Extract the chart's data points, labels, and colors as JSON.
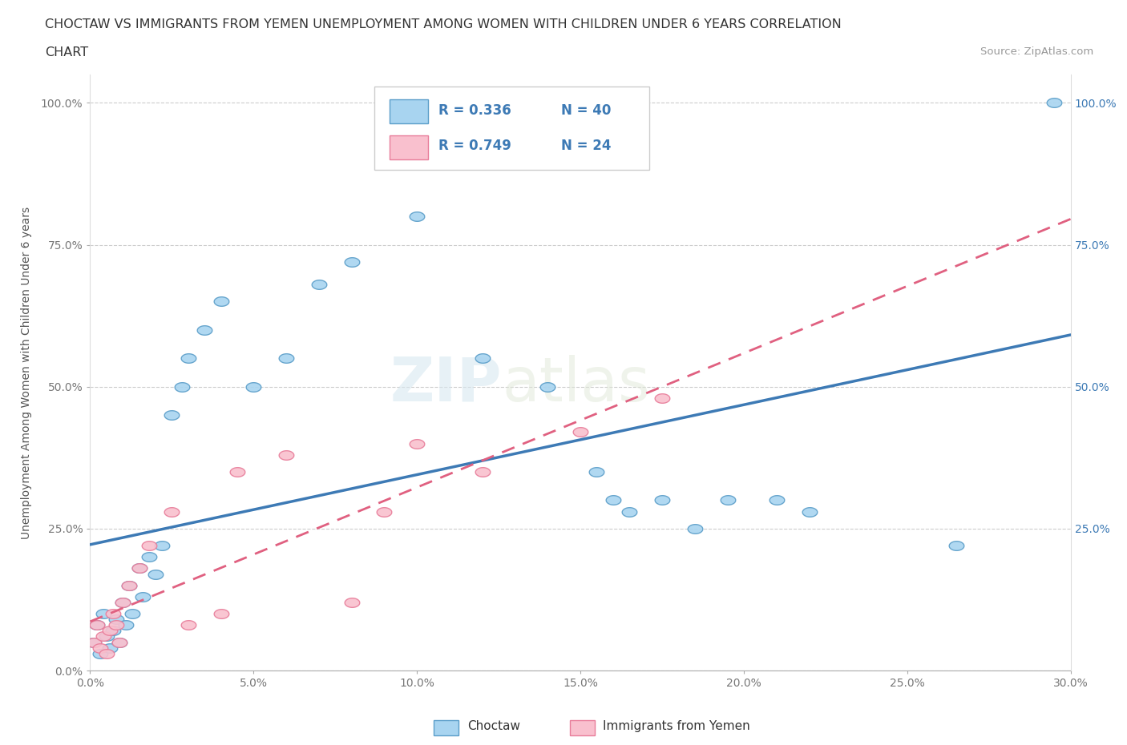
{
  "title_line1": "CHOCTAW VS IMMIGRANTS FROM YEMEN UNEMPLOYMENT AMONG WOMEN WITH CHILDREN UNDER 6 YEARS CORRELATION",
  "title_line2": "CHART",
  "source_text": "Source: ZipAtlas.com",
  "ylabel": "Unemployment Among Women with Children Under 6 years",
  "xlim": [
    0.0,
    0.3
  ],
  "ylim": [
    0.0,
    1.05
  ],
  "xtick_labels": [
    "0.0%",
    "5.0%",
    "10.0%",
    "15.0%",
    "20.0%",
    "25.0%",
    "30.0%"
  ],
  "xtick_vals": [
    0.0,
    0.05,
    0.1,
    0.15,
    0.2,
    0.25,
    0.3
  ],
  "ytick_labels": [
    "0.0%",
    "25.0%",
    "50.0%",
    "75.0%",
    "100.0%"
  ],
  "ytick_vals": [
    0.0,
    0.25,
    0.5,
    0.75,
    1.0
  ],
  "right_ytick_labels": [
    "25.0%",
    "50.0%",
    "75.0%",
    "100.0%"
  ],
  "right_ytick_vals": [
    0.25,
    0.5,
    0.75,
    1.0
  ],
  "choctaw_color": "#a8d4f0",
  "choctaw_edge_color": "#5b9ec9",
  "yemen_color": "#f9c0ce",
  "yemen_edge_color": "#e87d9a",
  "trend_choctaw_color": "#3d7ab5",
  "trend_yemen_color": "#e06080",
  "watermark": "ZIPatlas",
  "legend_R_choctaw": "R = 0.336",
  "legend_N_choctaw": "N = 40",
  "legend_R_yemen": "R = 0.749",
  "legend_N_yemen": "N = 24",
  "choctaw_x": [
    0.001,
    0.002,
    0.003,
    0.004,
    0.005,
    0.006,
    0.007,
    0.008,
    0.009,
    0.01,
    0.011,
    0.012,
    0.013,
    0.015,
    0.016,
    0.018,
    0.02,
    0.022,
    0.025,
    0.028,
    0.03,
    0.035,
    0.04,
    0.05,
    0.06,
    0.07,
    0.08,
    0.1,
    0.12,
    0.14,
    0.155,
    0.16,
    0.165,
    0.175,
    0.185,
    0.195,
    0.21,
    0.22,
    0.265,
    0.295
  ],
  "choctaw_y": [
    0.05,
    0.08,
    0.03,
    0.1,
    0.06,
    0.04,
    0.07,
    0.09,
    0.05,
    0.12,
    0.08,
    0.15,
    0.1,
    0.18,
    0.13,
    0.2,
    0.17,
    0.22,
    0.45,
    0.5,
    0.55,
    0.6,
    0.65,
    0.5,
    0.55,
    0.68,
    0.72,
    0.8,
    0.55,
    0.5,
    0.35,
    0.3,
    0.28,
    0.3,
    0.25,
    0.3,
    0.3,
    0.28,
    0.22,
    1.0
  ],
  "yemen_x": [
    0.001,
    0.002,
    0.003,
    0.004,
    0.005,
    0.006,
    0.007,
    0.008,
    0.009,
    0.01,
    0.012,
    0.015,
    0.018,
    0.025,
    0.03,
    0.04,
    0.045,
    0.06,
    0.08,
    0.09,
    0.1,
    0.12,
    0.15,
    0.175
  ],
  "yemen_y": [
    0.05,
    0.08,
    0.04,
    0.06,
    0.03,
    0.07,
    0.1,
    0.08,
    0.05,
    0.12,
    0.15,
    0.18,
    0.22,
    0.28,
    0.08,
    0.1,
    0.35,
    0.38,
    0.12,
    0.28,
    0.4,
    0.35,
    0.42,
    0.48
  ]
}
